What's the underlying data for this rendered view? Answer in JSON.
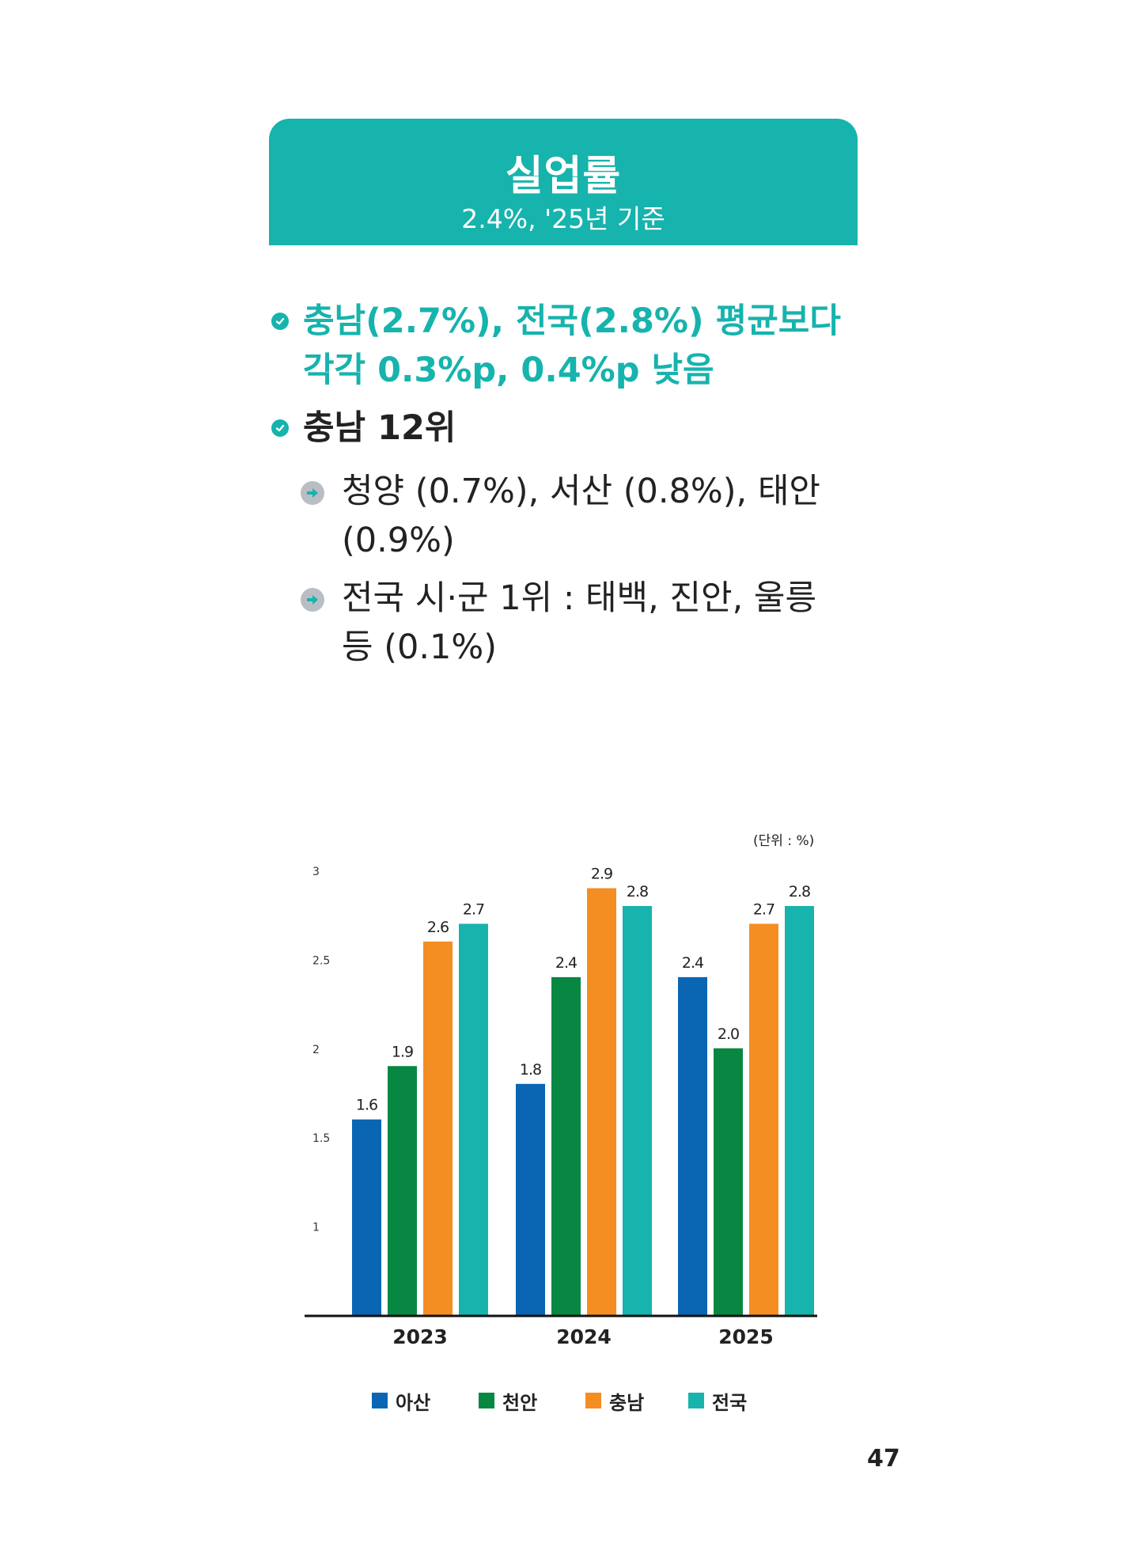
{
  "header": {
    "title": "실업률",
    "subtitle": "2.4%, '25년 기준"
  },
  "bullets": [
    {
      "text": "충남(2.7%), 전국(2.8%) 평균보다 각각 0.3%p, 0.4%p 낮음",
      "icon": "check-icon",
      "color": "#17b3ad"
    },
    {
      "text": "충남 12위",
      "icon": "check-icon",
      "color": "#222222"
    }
  ],
  "sub_bullets": [
    {
      "text": "청양 (0.7%), 서산 (0.8%), 태안 (0.9%)",
      "icon": "arrow-right-icon"
    },
    {
      "text": "전국 시·군 1위 : 태백, 진안, 울릉 등 (0.1%)",
      "icon": "arrow-right-icon"
    }
  ],
  "page_number": "47",
  "chart_data": {
    "type": "bar",
    "unit_label": "(단위 : %)",
    "categories": [
      "2023",
      "2024",
      "2025"
    ],
    "series": [
      {
        "name": "아산",
        "color": "#0a66b3",
        "values": [
          1.6,
          1.8,
          2.4
        ],
        "labels": [
          "1.6",
          "1.8",
          "2.4"
        ]
      },
      {
        "name": "천안",
        "color": "#078742",
        "values": [
          1.9,
          2.4,
          2.0
        ],
        "labels": [
          "1.9",
          "2.4",
          "2.0"
        ]
      },
      {
        "name": "충남",
        "color": "#f48e22",
        "values": [
          2.6,
          2.9,
          2.7
        ],
        "labels": [
          "2.6",
          "2.9",
          "2.7"
        ]
      },
      {
        "name": "전국",
        "color": "#17b3ad",
        "values": [
          2.7,
          2.8,
          2.8
        ],
        "labels": [
          "2.7",
          "2.8",
          "2.8"
        ]
      }
    ],
    "y_ticks": [
      "1",
      "1.5",
      "2",
      "2.5",
      "3"
    ],
    "ylim": [
      0.5,
      3
    ],
    "grid": false,
    "legend_position": "bottom"
  }
}
